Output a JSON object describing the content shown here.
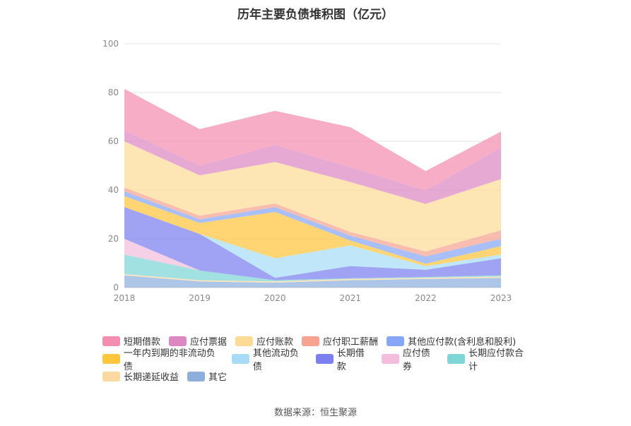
{
  "title": "历年主要负债堆积图（亿元）",
  "source": "数据来源：恒生聚源",
  "chart_data": {
    "type": "area",
    "stacked": true,
    "title": "历年主要负债堆积图（亿元）",
    "categories": [
      "2018",
      "2019",
      "2020",
      "2021",
      "2022",
      "2023"
    ],
    "ylim": [
      0,
      100
    ],
    "yticks": [
      "0",
      "20",
      "40",
      "60",
      "80",
      "100"
    ],
    "grid": true,
    "legend_position": "bottom",
    "series": [
      {
        "name": "其它",
        "color": "#8eaedc",
        "values": [
          5.0,
          2.5,
          2.0,
          3.0,
          3.5,
          4.0
        ]
      },
      {
        "name": "长期递延收益",
        "color": "#fdd9a2",
        "values": [
          0.5,
          0.5,
          0.5,
          0.5,
          0.5,
          0.5
        ]
      },
      {
        "name": "长期应付款合计",
        "color": "#7ed6d6",
        "values": [
          8.0,
          4.0,
          0.5,
          0.3,
          0.3,
          0.5
        ]
      },
      {
        "name": "应付债券",
        "color": "#f2bedc",
        "values": [
          6.5,
          0.0,
          0.0,
          0.0,
          0.0,
          0.0
        ]
      },
      {
        "name": "长期借款",
        "color": "#7b7fef",
        "values": [
          13.0,
          15.0,
          1.0,
          5.0,
          3.0,
          7.0
        ]
      },
      {
        "name": "其他流动负债",
        "color": "#a8dcf6",
        "values": [
          0.0,
          0.0,
          8.0,
          8.5,
          1.5,
          1.5
        ]
      },
      {
        "name": "一年内到期的非流动负债",
        "color": "#ffc53d",
        "values": [
          4.5,
          4.5,
          19.0,
          2.0,
          1.0,
          3.5
        ]
      },
      {
        "name": "其他应付款(含利息和股利)",
        "color": "#86a6f7",
        "values": [
          2.0,
          1.5,
          2.0,
          2.0,
          3.0,
          3.0
        ]
      },
      {
        "name": "应付职工薪酬",
        "color": "#f7a392",
        "values": [
          1.5,
          1.5,
          1.5,
          1.5,
          2.0,
          3.5
        ]
      },
      {
        "name": "应付账款",
        "color": "#fddb97",
        "values": [
          19.0,
          16.5,
          17.0,
          20.5,
          19.5,
          21.0
        ]
      },
      {
        "name": "应付票据",
        "color": "#dd88c2",
        "values": [
          4.5,
          4.0,
          7.0,
          6.0,
          5.5,
          13.0
        ]
      },
      {
        "name": "短期借款",
        "color": "#f58db0",
        "values": [
          17.0,
          15.0,
          14.0,
          16.5,
          8.0,
          6.5
        ]
      }
    ]
  },
  "legend_rows": [
    [
      {
        "label": "短期借款",
        "color": "#f58db0"
      },
      {
        "label": "应付票据",
        "color": "#dd88c2"
      },
      {
        "label": "应付账款",
        "color": "#fddb97"
      },
      {
        "label": "应付职工薪酬",
        "color": "#f7a392"
      },
      {
        "label": "其他应付款(含利息和股利)",
        "color": "#86a6f7"
      }
    ],
    [
      {
        "label": "一年内到期的非流动负债",
        "color": "#ffc53d"
      },
      {
        "label": "其他流动负债",
        "color": "#a8dcf6"
      },
      {
        "label": "长期借款",
        "color": "#7b7fef"
      },
      {
        "label": "应付债券",
        "color": "#f2bedc"
      },
      {
        "label": "长期应付款合计",
        "color": "#7ed6d6"
      }
    ],
    [
      {
        "label": "长期递延收益",
        "color": "#fdd9a2"
      },
      {
        "label": "其它",
        "color": "#8eaedc"
      }
    ]
  ]
}
